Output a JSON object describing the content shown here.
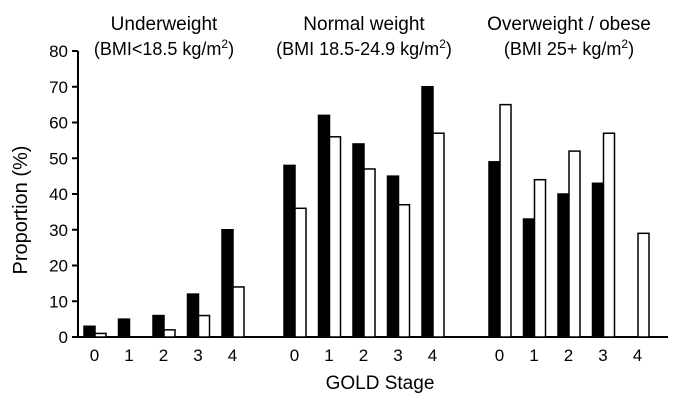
{
  "chart_data": {
    "type": "bar",
    "xlabel": "GOLD Stage",
    "ylabel": "Proportion (%)",
    "ylim": [
      0,
      80
    ],
    "yticks": [
      0,
      10,
      20,
      30,
      40,
      50,
      60,
      70,
      80
    ],
    "categories": [
      "0",
      "1",
      "2",
      "3",
      "4"
    ],
    "colors": {
      "filled": "#000000",
      "open": "#ffffff",
      "stroke": "#000000"
    },
    "legend": "none",
    "grid": false,
    "groups": [
      {
        "title_line1": "Underweight",
        "title_line2_prefix": "(BMI<18.5 kg/m",
        "title_sup": "2",
        "title_line2_suffix": ")",
        "series": [
          {
            "style": "filled",
            "values": [
              3,
              5,
              6,
              12,
              30
            ]
          },
          {
            "style": "open",
            "values": [
              1,
              0,
              2,
              6,
              14
            ]
          }
        ]
      },
      {
        "title_line1": "Normal weight",
        "title_line2_prefix": "(BMI 18.5-24.9 kg/m",
        "title_sup": "2",
        "title_line2_suffix": ")",
        "series": [
          {
            "style": "filled",
            "values": [
              48,
              62,
              54,
              45,
              70
            ]
          },
          {
            "style": "open",
            "values": [
              36,
              56,
              47,
              37,
              57
            ]
          }
        ]
      },
      {
        "title_line1": "Overweight / obese",
        "title_line2_prefix": "(BMI 25+ kg/m",
        "title_sup": "2",
        "title_line2_suffix": ")",
        "series": [
          {
            "style": "filled",
            "values": [
              49,
              33,
              40,
              43,
              0
            ]
          },
          {
            "style": "open",
            "values": [
              65,
              44,
              52,
              57,
              29
            ]
          }
        ]
      }
    ]
  }
}
